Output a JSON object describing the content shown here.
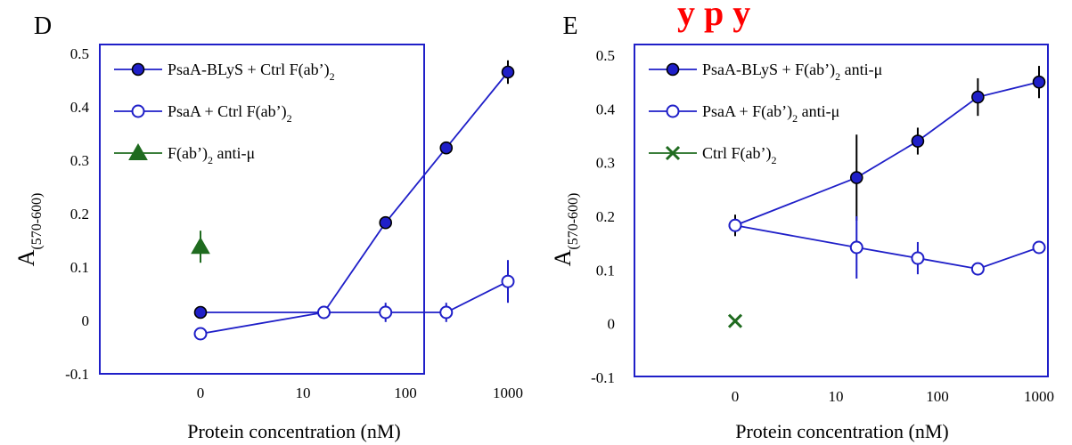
{
  "banner": "y p                y",
  "chart_data": [
    {
      "type": "scatter",
      "panel": "D",
      "xlabel": "Protein concentration (nM)",
      "ylabel_main": "A",
      "ylabel_sub": "(570-600)",
      "x_ticks": [
        "0",
        "10",
        "100",
        "1000"
      ],
      "y_ticks": [
        "0.5",
        "0.4",
        "0.3",
        "0.2",
        "0.1",
        "0",
        "-0.1"
      ],
      "ylim": [
        -0.1,
        0.5
      ],
      "x_scale": "log (0 shown at left)",
      "legend_position": "top-left",
      "series": [
        {
          "name_main": "PsaA-BLyS + Ctrl F(ab’)",
          "name_sub": "2",
          "marker": "filled-circle",
          "color": "#1f1fc8",
          "fill": "#1f1fc8",
          "x": [
            0,
            16,
            64,
            250,
            1000
          ],
          "y": [
            0.015,
            0.015,
            0.183,
            0.323,
            0.465
          ],
          "err": [
            0.0,
            0.0,
            0.008,
            0.008,
            0.022
          ]
        },
        {
          "name_main": "PsaA + Ctrl F(ab’)",
          "name_sub": "2",
          "marker": "open-circle",
          "color": "#1f1fc8",
          "fill": "#ffffff",
          "x": [
            0,
            16,
            64,
            250,
            1000
          ],
          "y": [
            -0.025,
            0.015,
            0.015,
            0.015,
            0.073
          ],
          "err": [
            0.0,
            0.0,
            0.018,
            0.018,
            0.04
          ]
        },
        {
          "name_pre": "F(ab’)",
          "name_sub": "2",
          "name_post": " anti-μ",
          "marker": "triangle",
          "color": "#1f6b1f",
          "fill": "#1f6b1f",
          "x": [
            0
          ],
          "y": [
            0.138
          ],
          "err": [
            0.03
          ]
        }
      ]
    },
    {
      "type": "scatter",
      "panel": "E",
      "xlabel": "Protein concentration (nM)",
      "ylabel_main": "A",
      "ylabel_sub": "(570-600)",
      "x_ticks": [
        "0",
        "10",
        "100",
        "1000"
      ],
      "y_ticks": [
        "0.5",
        "0.4",
        "0.3",
        "0.2",
        "0.1",
        "0",
        "-0.1"
      ],
      "ylim": [
        -0.1,
        0.5
      ],
      "x_scale": "log (0 shown at left)",
      "legend_position": "top-left",
      "series": [
        {
          "name_main": "PsaA-BLyS + F(ab’)",
          "name_sub": "2",
          "name_post": " anti-μ",
          "marker": "filled-circle",
          "color": "#1f1fc8",
          "fill": "#1f1fc8",
          "x": [
            0,
            16,
            64,
            250,
            1000
          ],
          "y": [
            0.183,
            0.272,
            0.34,
            0.422,
            0.45
          ],
          "err": [
            0.02,
            0.08,
            0.025,
            0.035,
            0.03
          ]
        },
        {
          "name_main": "PsaA + F(ab’)",
          "name_sub": "2",
          "name_post": " anti-μ",
          "marker": "open-circle",
          "color": "#1f1fc8",
          "fill": "#ffffff",
          "x": [
            0,
            16,
            64,
            250,
            1000
          ],
          "y": [
            0.183,
            0.142,
            0.122,
            0.102,
            0.142
          ],
          "err": [
            0.0,
            0.058,
            0.03,
            0.0,
            0.0
          ]
        },
        {
          "name_main": "Ctrl F(ab’)",
          "name_sub": "2",
          "marker": "cross",
          "color": "#1f6b1f",
          "fill": "#1f6b1f",
          "x": [
            0
          ],
          "y": [
            0.005
          ],
          "err": [
            0.0
          ]
        }
      ]
    }
  ]
}
